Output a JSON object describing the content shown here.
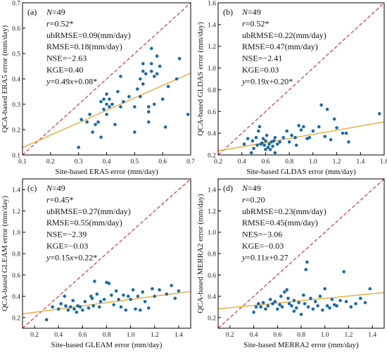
{
  "chart_data": [
    {
      "type": "scatter",
      "panel_label": "(a)",
      "xlabel": "Site-based ERA5 error (mm/day)",
      "ylabel": "QCA-based ERA5 error (mm/day)",
      "xlim": [
        0.1,
        0.7
      ],
      "ylim": [
        0.1,
        0.7
      ],
      "xticks": [
        0.1,
        0.2,
        0.3,
        0.4,
        0.5,
        0.6,
        0.7
      ],
      "yticks": [
        0.1,
        0.2,
        0.3,
        0.4,
        0.5,
        0.6,
        0.7
      ],
      "tick_decimals": 1,
      "fit": {
        "slope": 0.49,
        "intercept": 0.08
      },
      "stats": [
        {
          "pre": "",
          "it": "N",
          "post": "=49"
        },
        {
          "pre": "",
          "it": "r",
          "post": "=0.52*"
        },
        {
          "pre": "ubRMSE=0.09(mm/day)",
          "it": "",
          "post": ""
        },
        {
          "pre": "RMSE=0.18(mm/day)",
          "it": "",
          "post": ""
        },
        {
          "pre": "NSE=−2.63",
          "it": "",
          "post": ""
        },
        {
          "pre": "KGE=0.40",
          "it": "",
          "post": ""
        },
        {
          "pre": "",
          "it": "y",
          "post": "=0.49x+0.08*"
        }
      ],
      "points": [
        [
          0.3,
          0.13
        ],
        [
          0.31,
          0.24
        ],
        [
          0.33,
          0.23
        ],
        [
          0.34,
          0.26
        ],
        [
          0.35,
          0.19
        ],
        [
          0.36,
          0.22
        ],
        [
          0.37,
          0.23
        ],
        [
          0.38,
          0.31
        ],
        [
          0.38,
          0.17
        ],
        [
          0.39,
          0.32
        ],
        [
          0.39,
          0.28
        ],
        [
          0.4,
          0.34
        ],
        [
          0.4,
          0.3
        ],
        [
          0.4,
          0.26
        ],
        [
          0.41,
          0.32
        ],
        [
          0.41,
          0.29
        ],
        [
          0.42,
          0.3
        ],
        [
          0.43,
          0.22
        ],
        [
          0.44,
          0.35
        ],
        [
          0.45,
          0.41
        ],
        [
          0.45,
          0.29
        ],
        [
          0.46,
          0.31
        ],
        [
          0.48,
          0.33
        ],
        [
          0.5,
          0.29
        ],
        [
          0.5,
          0.19
        ],
        [
          0.51,
          0.36
        ],
        [
          0.52,
          0.4
        ],
        [
          0.52,
          0.33
        ],
        [
          0.53,
          0.43
        ],
        [
          0.53,
          0.38
        ],
        [
          0.53,
          0.46
        ],
        [
          0.54,
          0.42
        ],
        [
          0.55,
          0.29
        ],
        [
          0.55,
          0.23
        ],
        [
          0.55,
          0.27
        ],
        [
          0.56,
          0.46
        ],
        [
          0.56,
          0.43
        ],
        [
          0.56,
          0.52
        ],
        [
          0.57,
          0.3
        ],
        [
          0.57,
          0.41
        ],
        [
          0.58,
          0.49
        ],
        [
          0.58,
          0.42
        ],
        [
          0.59,
          0.45
        ],
        [
          0.6,
          0.32
        ],
        [
          0.61,
          0.21
        ],
        [
          0.62,
          0.37
        ],
        [
          0.65,
          0.4
        ],
        [
          0.66,
          0.48
        ],
        [
          0.69,
          0.26
        ]
      ]
    },
    {
      "type": "scatter",
      "panel_label": "(b)",
      "xlabel": "Site-based GLDAS error (mm/day)",
      "ylabel": "QCA-based GLDAS error (mm/day)",
      "xlim": [
        0.2,
        1.6
      ],
      "ylim": [
        0.2,
        1.6
      ],
      "xticks": [
        0.2,
        0.4,
        0.6,
        0.8,
        1.0,
        1.2,
        1.4,
        1.6
      ],
      "yticks": [
        0.2,
        0.4,
        0.6,
        0.8,
        1.0,
        1.2,
        1.4,
        1.6
      ],
      "tick_decimals": 1,
      "fit": {
        "slope": 0.19,
        "intercept": 0.2
      },
      "stats": [
        {
          "pre": "",
          "it": "N",
          "post": "=49"
        },
        {
          "pre": "",
          "it": "r",
          "post": "=0.52*"
        },
        {
          "pre": "ubRMSE=0.22(mm/day)",
          "it": "",
          "post": ""
        },
        {
          "pre": "RMSE=0.47(mm/day)",
          "it": "",
          "post": ""
        },
        {
          "pre": "NSE=−2.41",
          "it": "",
          "post": ""
        },
        {
          "pre": "KGE=0.03",
          "it": "",
          "post": ""
        },
        {
          "pre": "",
          "it": "y",
          "post": "=0.19x+0.20*"
        }
      ],
      "points": [
        [
          0.42,
          0.3
        ],
        [
          0.45,
          0.35
        ],
        [
          0.48,
          0.22
        ],
        [
          0.49,
          0.33
        ],
        [
          0.5,
          0.26
        ],
        [
          0.52,
          0.36
        ],
        [
          0.53,
          0.29
        ],
        [
          0.54,
          0.42
        ],
        [
          0.55,
          0.46
        ],
        [
          0.56,
          0.3
        ],
        [
          0.57,
          0.31
        ],
        [
          0.58,
          0.35
        ],
        [
          0.59,
          0.29
        ],
        [
          0.6,
          0.25
        ],
        [
          0.6,
          0.33
        ],
        [
          0.61,
          0.38
        ],
        [
          0.62,
          0.27
        ],
        [
          0.63,
          0.3
        ],
        [
          0.64,
          0.25
        ],
        [
          0.65,
          0.32
        ],
        [
          0.66,
          0.28
        ],
        [
          0.67,
          0.33
        ],
        [
          0.68,
          0.22
        ],
        [
          0.68,
          0.36
        ],
        [
          0.7,
          0.3
        ],
        [
          0.72,
          0.32
        ],
        [
          0.75,
          0.36
        ],
        [
          0.8,
          0.32
        ],
        [
          0.82,
          0.38
        ],
        [
          0.85,
          0.36
        ],
        [
          0.86,
          0.29
        ],
        [
          0.88,
          0.47
        ],
        [
          0.9,
          0.43
        ],
        [
          0.92,
          0.46
        ],
        [
          0.95,
          0.35
        ],
        [
          0.97,
          0.36
        ],
        [
          1.0,
          0.42
        ],
        [
          1.05,
          0.46
        ],
        [
          1.07,
          0.66
        ],
        [
          1.1,
          0.37
        ],
        [
          1.12,
          0.62
        ],
        [
          1.15,
          0.34
        ],
        [
          1.18,
          0.53
        ],
        [
          1.2,
          0.45
        ],
        [
          1.25,
          0.4
        ],
        [
          1.28,
          0.4
        ],
        [
          1.3,
          0.32
        ],
        [
          1.56,
          0.58
        ],
        [
          0.78,
          0.42
        ]
      ]
    },
    {
      "type": "scatter",
      "panel_label": "(c)",
      "xlabel": "Site-based GLEAM error (mm/day)",
      "ylabel": "QCA-based GLEAM error (mm/day)",
      "xlim": [
        0.1,
        1.5
      ],
      "ylim": [
        0.1,
        1.5
      ],
      "xticks": [
        0.2,
        0.4,
        0.6,
        0.8,
        1.0,
        1.2,
        1.4
      ],
      "yticks": [
        0.2,
        0.4,
        0.6,
        0.8,
        1.0,
        1.2,
        1.4
      ],
      "tick_decimals": 1,
      "fit": {
        "slope": 0.15,
        "intercept": 0.22
      },
      "stats": [
        {
          "pre": "",
          "it": "N",
          "post": "=49"
        },
        {
          "pre": "",
          "it": "r",
          "post": "=0.45*"
        },
        {
          "pre": "ubRMSE=0.27(mm/day)",
          "it": "",
          "post": ""
        },
        {
          "pre": "RMSE=0.55(mm/day)",
          "it": "",
          "post": ""
        },
        {
          "pre": "NSE=−2.39",
          "it": "",
          "post": ""
        },
        {
          "pre": "KGE=−0.03",
          "it": "",
          "post": ""
        },
        {
          "pre": "",
          "it": "y",
          "post": "=0.15x+0.22*"
        }
      ],
      "points": [
        [
          0.3,
          0.18
        ],
        [
          0.35,
          0.3
        ],
        [
          0.4,
          0.28
        ],
        [
          0.42,
          0.33
        ],
        [
          0.45,
          0.4
        ],
        [
          0.46,
          0.31
        ],
        [
          0.48,
          0.27
        ],
        [
          0.5,
          0.3
        ],
        [
          0.52,
          0.36
        ],
        [
          0.53,
          0.28
        ],
        [
          0.55,
          0.25
        ],
        [
          0.56,
          0.31
        ],
        [
          0.58,
          0.3
        ],
        [
          0.6,
          0.27
        ],
        [
          0.62,
          0.35
        ],
        [
          0.65,
          0.29
        ],
        [
          0.67,
          0.4
        ],
        [
          0.68,
          0.38
        ],
        [
          0.69,
          0.31
        ],
        [
          0.7,
          0.54
        ],
        [
          0.72,
          0.42
        ],
        [
          0.74,
          0.3
        ],
        [
          0.75,
          0.35
        ],
        [
          0.78,
          0.37
        ],
        [
          0.8,
          0.53
        ],
        [
          0.82,
          0.52
        ],
        [
          0.84,
          0.41
        ],
        [
          0.86,
          0.32
        ],
        [
          0.88,
          0.45
        ],
        [
          0.9,
          0.37
        ],
        [
          0.92,
          0.3
        ],
        [
          0.94,
          0.41
        ],
        [
          0.96,
          0.27
        ],
        [
          0.98,
          0.4
        ],
        [
          1.0,
          0.37
        ],
        [
          1.02,
          0.46
        ],
        [
          1.04,
          0.28
        ],
        [
          1.06,
          0.4
        ],
        [
          1.08,
          0.27
        ],
        [
          1.1,
          0.44
        ],
        [
          1.12,
          0.35
        ],
        [
          1.15,
          0.29
        ],
        [
          1.18,
          0.47
        ],
        [
          1.2,
          0.4
        ],
        [
          1.24,
          0.46
        ],
        [
          1.3,
          0.42
        ],
        [
          1.34,
          0.5
        ],
        [
          1.37,
          0.38
        ],
        [
          1.4,
          0.45
        ]
      ]
    },
    {
      "type": "scatter",
      "panel_label": "(d)",
      "xlabel": "Site-based MERRA2 error (mm/day)",
      "ylabel": "QCA-based MERRA2 error (mm/day)",
      "xlim": [
        0.1,
        1.5
      ],
      "ylim": [
        0.1,
        1.5
      ],
      "xticks": [
        0.2,
        0.4,
        0.6,
        0.8,
        1.0,
        1.2,
        1.4
      ],
      "yticks": [
        0.2,
        0.4,
        0.6,
        0.8,
        1.0,
        1.2,
        1.4
      ],
      "tick_decimals": 1,
      "fit": {
        "slope": 0.11,
        "intercept": 0.27
      },
      "stats": [
        {
          "pre": "",
          "it": "N",
          "post": "=49"
        },
        {
          "pre": "",
          "it": "r",
          "post": "=0.20"
        },
        {
          "pre": "ubRMSE=0.23(mm/day)",
          "it": "",
          "post": ""
        },
        {
          "pre": "RMSE=0.45(mm/day)",
          "it": "",
          "post": ""
        },
        {
          "pre": "NES=−3.06",
          "it": "",
          "post": ""
        },
        {
          "pre": "KGE=−0.03",
          "it": "",
          "post": ""
        },
        {
          "pre": "",
          "it": "y",
          "post": "=0.11x+0.27"
        }
      ],
      "points": [
        [
          0.4,
          0.25
        ],
        [
          0.42,
          0.3
        ],
        [
          0.44,
          0.33
        ],
        [
          0.46,
          0.3
        ],
        [
          0.48,
          0.34
        ],
        [
          0.5,
          0.28
        ],
        [
          0.52,
          0.31
        ],
        [
          0.54,
          0.37
        ],
        [
          0.56,
          0.33
        ],
        [
          0.58,
          0.35
        ],
        [
          0.6,
          0.28
        ],
        [
          0.62,
          0.32
        ],
        [
          0.63,
          0.4
        ],
        [
          0.64,
          0.3
        ],
        [
          0.66,
          0.44
        ],
        [
          0.68,
          0.46
        ],
        [
          0.69,
          0.38
        ],
        [
          0.7,
          0.33
        ],
        [
          0.72,
          0.31
        ],
        [
          0.74,
          0.36
        ],
        [
          0.76,
          0.29
        ],
        [
          0.78,
          0.34
        ],
        [
          0.8,
          0.23
        ],
        [
          0.82,
          0.41
        ],
        [
          0.83,
          0.33
        ],
        [
          0.84,
          0.65
        ],
        [
          0.85,
          0.72
        ],
        [
          0.86,
          0.3
        ],
        [
          0.88,
          0.38
        ],
        [
          0.9,
          0.28
        ],
        [
          0.92,
          0.35
        ],
        [
          0.94,
          0.31
        ],
        [
          0.96,
          0.4
        ],
        [
          0.98,
          0.27
        ],
        [
          1.0,
          0.47
        ],
        [
          1.02,
          0.31
        ],
        [
          1.04,
          0.29
        ],
        [
          1.06,
          0.37
        ],
        [
          1.08,
          0.32
        ],
        [
          1.1,
          0.31
        ],
        [
          1.13,
          0.36
        ],
        [
          1.16,
          0.63
        ],
        [
          1.18,
          0.35
        ],
        [
          1.22,
          0.3
        ],
        [
          1.26,
          0.33
        ],
        [
          1.3,
          0.38
        ],
        [
          1.34,
          0.34
        ],
        [
          1.38,
          0.47
        ],
        [
          0.74,
          0.26
        ]
      ]
    }
  ]
}
